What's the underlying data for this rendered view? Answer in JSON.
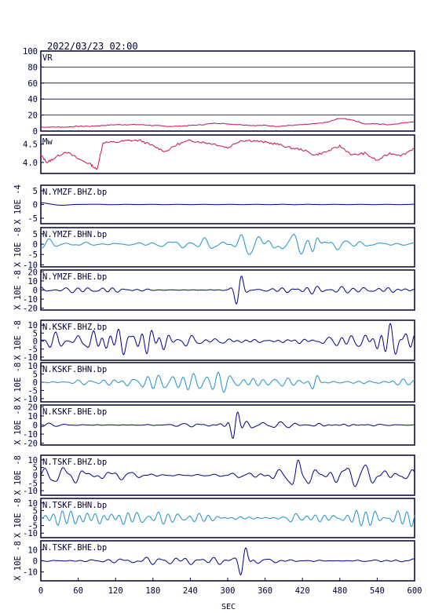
{
  "header": {
    "timestamp": "2022/03/23 02:00"
  },
  "colors": {
    "frame": "#000033",
    "vr_mw": "#cc1144",
    "dark_trace": "#000088",
    "light_trace": "#1e90cc",
    "grid": "#000033"
  },
  "xaxis": {
    "label": "SEC",
    "ticks": [
      "0",
      "60",
      "120",
      "180",
      "240",
      "300",
      "360",
      "420",
      "480",
      "540",
      "600"
    ],
    "xlim": [
      0,
      600
    ]
  },
  "chart_data": [
    {
      "type": "line",
      "panel": "vr",
      "label": "VR",
      "ylim": [
        0,
        100
      ],
      "yticks": [
        0,
        20,
        40,
        60,
        80,
        100
      ],
      "ytick_labels": [
        "0",
        "20",
        "40",
        "60",
        "80",
        "100"
      ],
      "grid": true,
      "x": [
        0,
        20,
        40,
        60,
        80,
        100,
        120,
        140,
        160,
        180,
        200,
        220,
        240,
        260,
        280,
        300,
        320,
        340,
        360,
        380,
        400,
        420,
        440,
        460,
        480,
        500,
        520,
        540,
        560,
        580,
        600
      ],
      "values": [
        5,
        5,
        5,
        6,
        6,
        7,
        8,
        8,
        8,
        7,
        6,
        6,
        7,
        8,
        10,
        9,
        8,
        7,
        7,
        6,
        7,
        8,
        9,
        11,
        16,
        14,
        9,
        9,
        8,
        10,
        12
      ]
    },
    {
      "type": "line",
      "panel": "mw",
      "label": "Mw",
      "ylim": [
        3.7,
        4.75
      ],
      "yticks": [
        4.0,
        4.5
      ],
      "ytick_labels": [
        "4.0",
        "4.5"
      ],
      "grid": false,
      "x": [
        0,
        10,
        20,
        40,
        60,
        80,
        90,
        100,
        120,
        140,
        160,
        180,
        200,
        220,
        240,
        260,
        280,
        300,
        320,
        340,
        360,
        380,
        400,
        420,
        440,
        460,
        480,
        500,
        520,
        540,
        560,
        580,
        600
      ],
      "values": [
        4.2,
        4.0,
        4.1,
        4.3,
        4.1,
        3.95,
        3.8,
        4.55,
        4.55,
        4.6,
        4.6,
        4.45,
        4.3,
        4.5,
        4.6,
        4.55,
        4.5,
        4.4,
        4.6,
        4.6,
        4.55,
        4.5,
        4.4,
        4.35,
        4.2,
        4.3,
        4.45,
        4.2,
        4.25,
        4.05,
        4.25,
        4.2,
        4.4
      ]
    },
    {
      "type": "line",
      "panel": "trace",
      "label": "N.YMZF.BHZ.bp",
      "scale": "X 10E -4",
      "color_key": "dark_trace",
      "ylim": [
        -7,
        7
      ],
      "yticks": [
        -5,
        0,
        5
      ],
      "ytick_labels": [
        "-5",
        "0",
        "5"
      ],
      "seed": 11,
      "noise_amp": 0,
      "small_start": 1,
      "event_amp": 0,
      "event_x": 0
    },
    {
      "type": "line",
      "panel": "trace",
      "label": "N.YMZF.BHN.bp",
      "scale": "X 10E -8",
      "color_key": "light_trace",
      "ylim": [
        -11,
        8
      ],
      "yticks": [
        -10,
        -5,
        0,
        5
      ],
      "ytick_labels": [
        "-10",
        "-5",
        "0",
        "5"
      ],
      "seed": 22,
      "noise_amp": 4.5,
      "small_start": 0,
      "event_amp": 5,
      "event_x": 440
    },
    {
      "type": "line",
      "panel": "trace",
      "label": "N.YMZF.BHE.bp",
      "scale": "X 10E -8",
      "color_key": "dark_trace",
      "ylim": [
        -22,
        22
      ],
      "yticks": [
        -20,
        -10,
        0,
        10,
        20
      ],
      "ytick_labels": [
        "-20",
        "-10",
        "0",
        "10",
        "20"
      ],
      "seed": 33,
      "noise_amp": 3.5,
      "small_start": 0,
      "event_amp": 20,
      "event_x": 318
    },
    {
      "type": "line",
      "panel": "trace",
      "label": "N.KSKF.BHZ.bp",
      "scale": "X 10E -8",
      "color_key": "dark_trace",
      "ylim": [
        -12,
        13
      ],
      "yticks": [
        -10,
        -5,
        0,
        5,
        10
      ],
      "ytick_labels": [
        "-10",
        "-5",
        "0",
        "5",
        "10"
      ],
      "seed": 44,
      "noise_amp": 7.5,
      "small_start": 0,
      "event_amp": 4,
      "event_x": 555
    },
    {
      "type": "line",
      "panel": "trace",
      "label": "N.KSKF.BHN.bp",
      "scale": "X 10E -8",
      "color_key": "light_trace",
      "ylim": [
        -12,
        12
      ],
      "yticks": [
        -10,
        -5,
        0,
        5,
        10
      ],
      "ytick_labels": [
        "-10",
        "-5",
        "0",
        "5",
        "10"
      ],
      "seed": 55,
      "noise_amp": 5.5,
      "small_start": 0,
      "event_amp": 6,
      "event_x": 440
    },
    {
      "type": "line",
      "panel": "trace",
      "label": "N.KSKF.BHE.bp",
      "scale": "X 10E -8",
      "color_key": "dark_trace",
      "ylim": [
        -22,
        22
      ],
      "yticks": [
        -20,
        -10,
        0,
        10,
        20
      ],
      "ytick_labels": [
        "-20",
        "-10",
        "0",
        "10",
        "20"
      ],
      "seed": 66,
      "noise_amp": 3.5,
      "small_start": 0,
      "event_amp": 20,
      "event_x": 312
    },
    {
      "type": "line",
      "panel": "trace",
      "label": "N.TSKF.BHZ.bp",
      "scale": "X 10E -8",
      "color_key": "dark_trace",
      "ylim": [
        -13,
        13
      ],
      "yticks": [
        -10,
        -5,
        0,
        5,
        10
      ],
      "ytick_labels": [
        "-10",
        "-5",
        "0",
        "5",
        "10"
      ],
      "seed": 77,
      "noise_amp": 5.5,
      "small_start": 0,
      "event_amp": 7,
      "event_x": 410
    },
    {
      "type": "line",
      "panel": "trace",
      "label": "N.TSKF.BHN.bp",
      "scale": "X 10E -8",
      "color_key": "light_trace",
      "ylim": [
        -13,
        13
      ],
      "yticks": [
        -10,
        -5,
        0,
        5,
        10
      ],
      "ytick_labels": [
        "-10",
        "-5",
        "0",
        "5",
        "10"
      ],
      "seed": 88,
      "noise_amp": 6,
      "small_start": 0,
      "event_amp": 4,
      "event_x": 405
    },
    {
      "type": "line",
      "panel": "trace",
      "label": "N.TSKF.BHE.bp",
      "scale": "X 10E -8",
      "color_key": "dark_trace",
      "ylim": [
        -18,
        18
      ],
      "yticks": [
        -10,
        0,
        10
      ],
      "ytick_labels": [
        "-10",
        "0",
        "10"
      ],
      "seed": 99,
      "noise_amp": 3.5,
      "small_start": 0,
      "event_amp": 16,
      "event_x": 325
    }
  ]
}
